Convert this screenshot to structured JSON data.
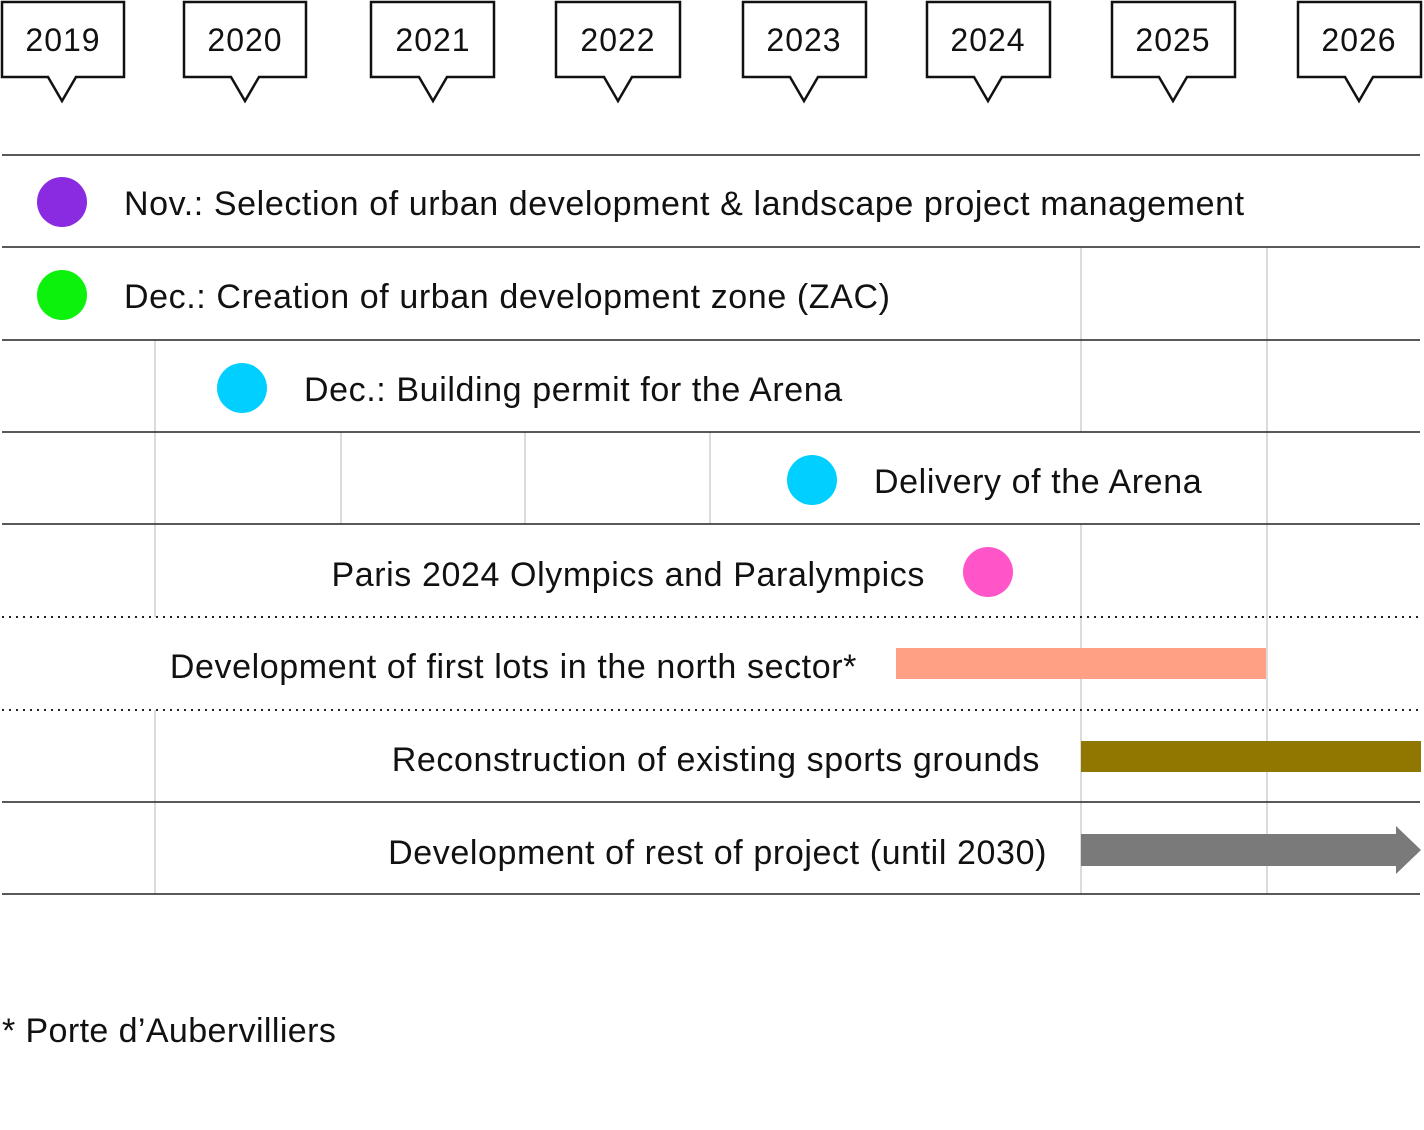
{
  "years": [
    "2019",
    "2020",
    "2021",
    "2022",
    "2023",
    "2024",
    "2025",
    "2026"
  ],
  "events": [
    {
      "label": "Nov.: Selection of urban development & landscape project management",
      "kind": "dot",
      "color": "#8a2be2"
    },
    {
      "label": "Dec.: Creation of urban development zone (ZAC)",
      "kind": "dot",
      "color": "#0df20d"
    },
    {
      "label": "Dec.: Building permit for the Arena",
      "kind": "dot",
      "color": "#00cfff"
    },
    {
      "label": "Delivery of the Arena",
      "kind": "dot",
      "color": "#00cfff"
    },
    {
      "label": "Paris 2024 Olympics and Paralympics",
      "kind": "dot",
      "color": "#ff55c8"
    },
    {
      "label": "Development of first lots in the north sector*",
      "kind": "bar",
      "color": "#ffa085"
    },
    {
      "label": "Reconstruction of existing sports grounds",
      "kind": "bar",
      "color": "#8f7700"
    },
    {
      "label": "Development of rest of project (until 2030)",
      "kind": "arrow",
      "color": "#7a7a7a"
    }
  ],
  "footnote": "* Porte d’Aubervilliers"
}
